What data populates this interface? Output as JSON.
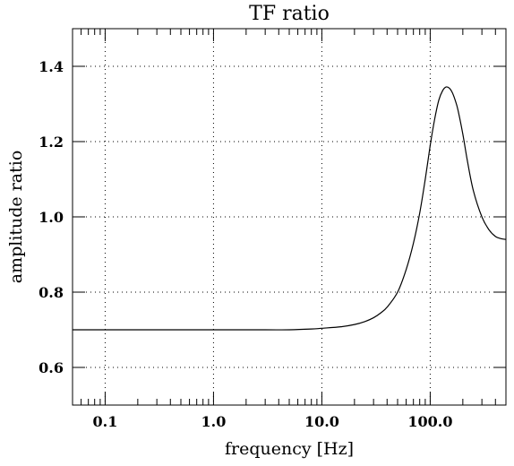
{
  "chart_data": {
    "type": "line",
    "title": "TF ratio",
    "xlabel": "frequency [Hz]",
    "ylabel": "amplitude ratio",
    "xscale": "log",
    "xlim": [
      0.05,
      500
    ],
    "ylim": [
      0.5,
      1.5
    ],
    "grid": true,
    "grid_style": "dotted",
    "xticks": [
      0.1,
      1.0,
      10.0,
      100.0
    ],
    "xtick_labels": [
      "0.1",
      "1.0",
      "10.0",
      "100.0"
    ],
    "yticks": [
      0.6,
      0.8,
      1.0,
      1.2,
      1.4
    ],
    "ytick_labels": [
      "0.6",
      "0.8",
      "1.0",
      "1.2",
      "1.4"
    ],
    "series": [
      {
        "color": "#000000",
        "x": [
          0.05,
          0.1,
          0.5,
          1,
          3,
          5,
          8,
          10,
          15,
          20,
          25,
          30,
          35,
          40,
          50,
          60,
          70,
          80,
          90,
          100,
          110,
          120,
          130,
          140,
          150,
          160,
          170,
          180,
          200,
          220,
          250,
          300,
          350,
          400,
          450,
          500
        ],
        "y": [
          0.7,
          0.7,
          0.7,
          0.7,
          0.7,
          0.7,
          0.702,
          0.704,
          0.708,
          0.714,
          0.722,
          0.732,
          0.745,
          0.76,
          0.8,
          0.86,
          0.93,
          1.01,
          1.1,
          1.19,
          1.26,
          1.31,
          1.335,
          1.345,
          1.342,
          1.33,
          1.31,
          1.285,
          1.22,
          1.15,
          1.07,
          1.0,
          0.965,
          0.948,
          0.942,
          0.94
        ]
      }
    ]
  }
}
